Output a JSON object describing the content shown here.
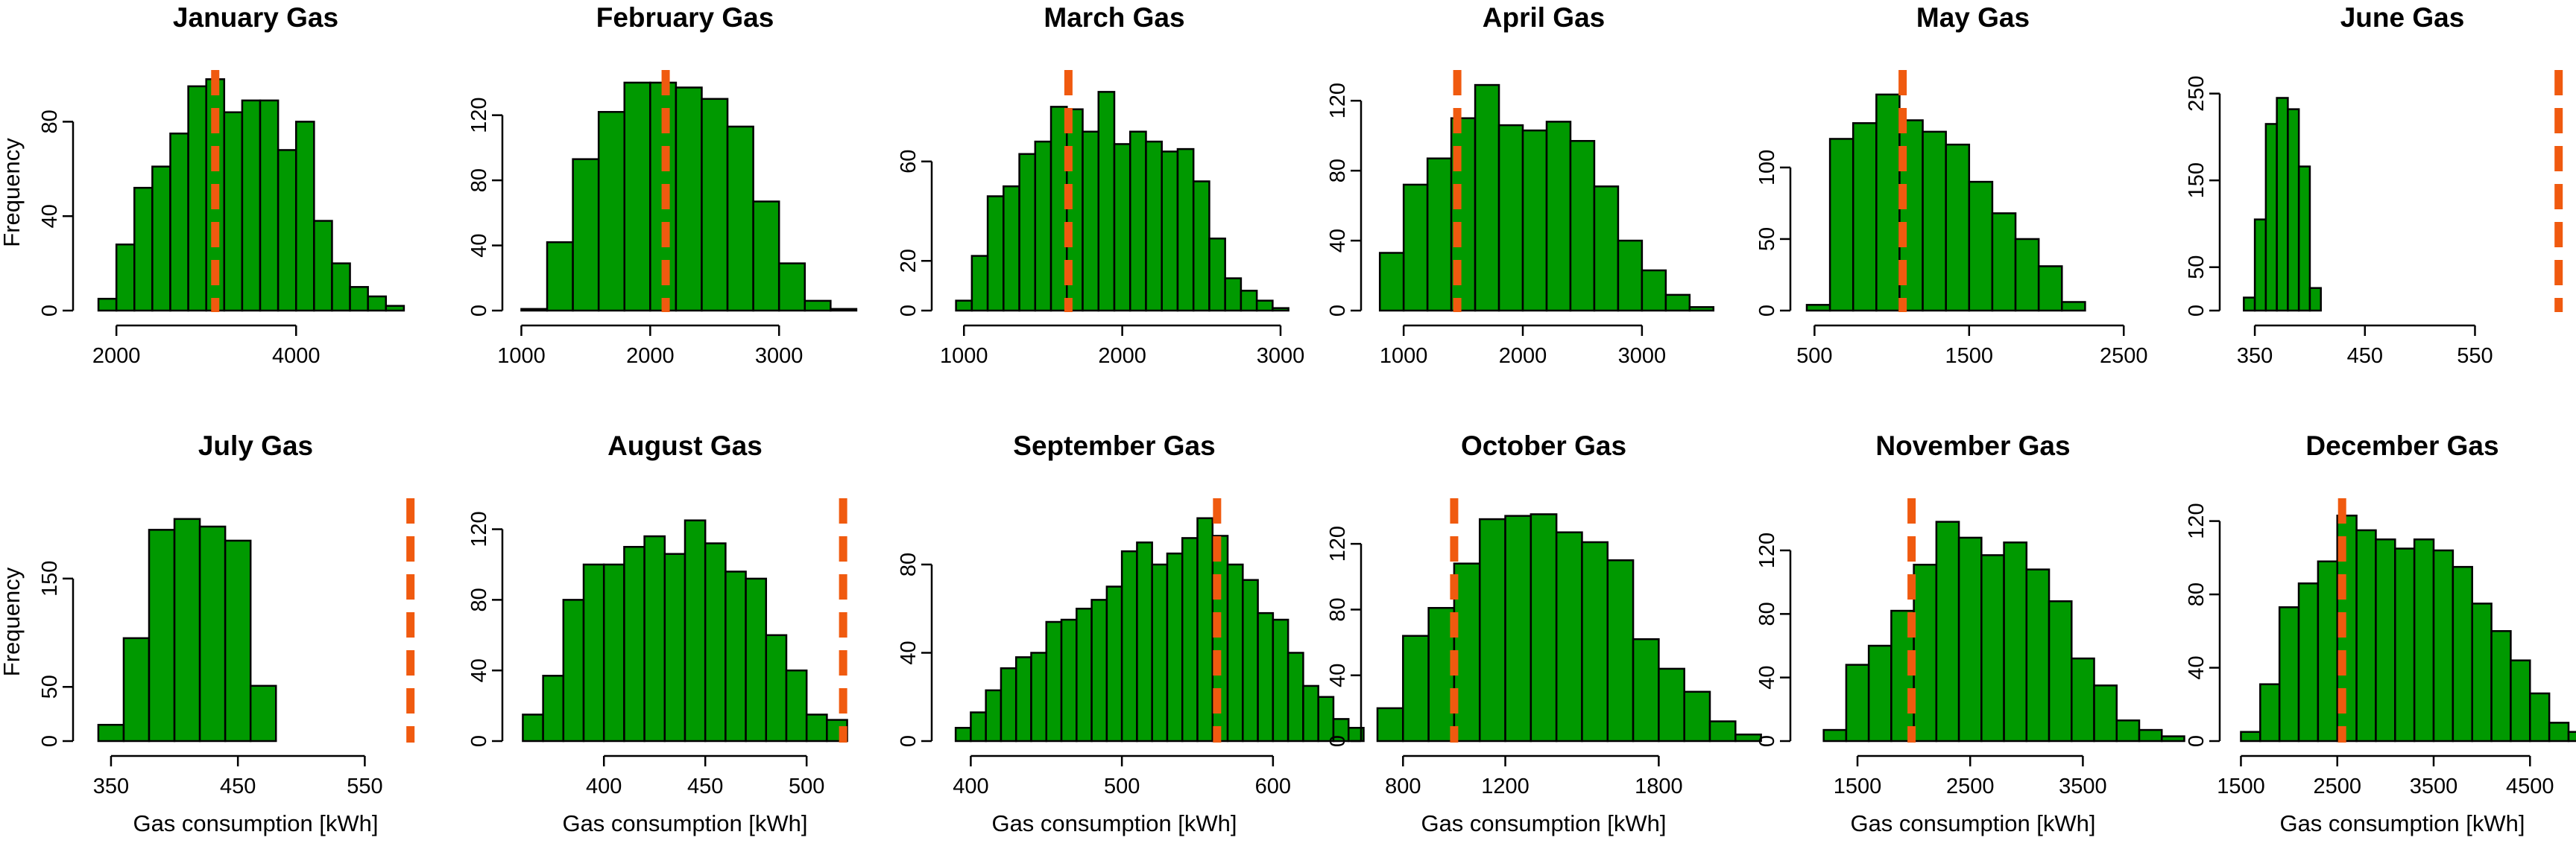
{
  "colors": {
    "bar": "#009900",
    "refline": "#F05A0F"
  },
  "chart_data": [
    {
      "type": "bar",
      "title": "January Gas",
      "xlabel": "",
      "ylabel": "Frequency",
      "xticks": [
        2000,
        4000
      ],
      "yticks": [
        0,
        40,
        80
      ],
      "xlim": [
        1700,
        5400
      ],
      "ylim": [
        0,
        100
      ],
      "bin_start": 1800,
      "bin_width": 200,
      "values": [
        5,
        28,
        52,
        61,
        75,
        95,
        98,
        84,
        89,
        89,
        68,
        80,
        38,
        20,
        10,
        6,
        2
      ],
      "refline": 3100
    },
    {
      "type": "bar",
      "title": "February Gas",
      "xlabel": "",
      "ylabel": "",
      "xticks": [
        1000,
        2000,
        3000
      ],
      "yticks": [
        0,
        40,
        80,
        120
      ],
      "xlim": [
        980,
        3560
      ],
      "ylim": [
        0,
        145
      ],
      "bin_start": 1000,
      "bin_width": 200,
      "values": [
        1,
        42,
        93,
        122,
        140,
        140,
        137,
        130,
        113,
        67,
        29,
        6,
        1
      ],
      "refline": 2120
    },
    {
      "type": "bar",
      "title": "March Gas",
      "xlabel": "",
      "ylabel": "",
      "xticks": [
        1000,
        2000,
        3000
      ],
      "yticks": [
        0,
        20,
        60
      ],
      "xlim": [
        900,
        3000
      ],
      "ylim": [
        0,
        95
      ],
      "bin_start": 950,
      "bin_width": 100,
      "values": [
        4,
        22,
        46,
        50,
        63,
        68,
        82,
        81,
        72,
        88,
        67,
        72,
        68,
        64,
        65,
        52,
        29,
        13,
        8,
        4,
        1
      ],
      "refline": 1660
    },
    {
      "type": "bar",
      "title": "April Gas",
      "xlabel": "",
      "ylabel": "",
      "xticks": [
        1000,
        2000,
        3000
      ],
      "yticks": [
        0,
        40,
        80,
        120
      ],
      "xlim": [
        780,
        3570
      ],
      "ylim": [
        0,
        135
      ],
      "bin_start": 800,
      "bin_width": 200,
      "values": [
        33,
        72,
        87,
        110,
        129,
        106,
        103,
        108,
        97,
        71,
        40,
        23,
        9,
        2
      ],
      "refline": 1450
    },
    {
      "type": "bar",
      "title": "May Gas",
      "xlabel": "",
      "ylabel": "",
      "xticks": [
        500,
        1500,
        2500
      ],
      "yticks": [
        0,
        50,
        100
      ],
      "xlim": [
        450,
        2600
      ],
      "ylim": [
        0,
        165
      ],
      "bin_start": 450,
      "bin_width": 150,
      "values": [
        4,
        120,
        131,
        151,
        133,
        125,
        116,
        90,
        68,
        50,
        31,
        6
      ],
      "refline": 1070
    },
    {
      "type": "bar",
      "title": "June Gas",
      "xlabel": "",
      "ylabel": "",
      "xticks": [
        350,
        450,
        550
      ],
      "yticks": [
        0,
        50,
        150,
        250
      ],
      "xlim": [
        333,
        635
      ],
      "ylim": [
        0,
        272
      ],
      "bin_start": 340,
      "bin_width": 10,
      "values": [
        15,
        105,
        215,
        245,
        232,
        166,
        26
      ],
      "refline": 626
    }
  ],
  "chart_data_row2": [
    {
      "type": "bar",
      "title": "July Gas",
      "xlabel": "Gas consumption [kWh]",
      "ylabel": "Frequency",
      "xticks": [
        350,
        450,
        550
      ],
      "yticks": [
        0,
        50,
        150
      ],
      "xlim": [
        333,
        595
      ],
      "ylim": [
        0,
        220
      ],
      "bin_start": 340,
      "bin_width": 20,
      "values": [
        15,
        95,
        195,
        205,
        198,
        185,
        51
      ],
      "refline": 586
    },
    {
      "type": "bar",
      "title": "August Gas",
      "xlabel": "Gas consumption [kWh]",
      "ylabel": "",
      "xticks": [
        400,
        450,
        500
      ],
      "yticks": [
        0,
        40,
        80,
        120
      ],
      "xlim": [
        358,
        522
      ],
      "ylim": [
        0,
        135
      ],
      "bin_start": 360,
      "bin_width": 10,
      "values": [
        15,
        37,
        80,
        100,
        100,
        110,
        116,
        106,
        125,
        112,
        96,
        92,
        60,
        40,
        15,
        12
      ],
      "refline": 518
    },
    {
      "type": "bar",
      "title": "September Gas",
      "xlabel": "Gas consumption [kWh]",
      "ylabel": "",
      "xticks": [
        400,
        500,
        600
      ],
      "yticks": [
        0,
        40,
        80
      ],
      "xlim": [
        385,
        605
      ],
      "ylim": [
        0,
        108
      ],
      "bin_start": 390,
      "bin_width": 10,
      "values": [
        6,
        13,
        23,
        33,
        38,
        40,
        54,
        55,
        60,
        64,
        70,
        86,
        90,
        80,
        85,
        92,
        101,
        93,
        80,
        73,
        58,
        55,
        40,
        25,
        20,
        10,
        6
      ],
      "refline": 563
    },
    {
      "type": "bar",
      "title": "October Gas",
      "xlabel": "Gas consumption [kWh]",
      "ylabel": "",
      "xticks": [
        800,
        1200,
        1800
      ],
      "yticks": [
        0,
        40,
        80,
        120
      ],
      "xlim": [
        700,
        2000
      ],
      "ylim": [
        0,
        145
      ],
      "bin_start": 700,
      "bin_width": 100,
      "values": [
        20,
        64,
        81,
        108,
        135,
        137,
        138,
        127,
        121,
        110,
        62,
        44,
        30,
        12,
        4
      ],
      "refline": 1000
    },
    {
      "type": "bar",
      "title": "November Gas",
      "xlabel": "Gas consumption [kWh]",
      "ylabel": "",
      "xticks": [
        1500,
        2500,
        3500
      ],
      "yticks": [
        0,
        40,
        80,
        120
      ],
      "xlim": [
        1050,
        4000
      ],
      "ylim": [
        0,
        150
      ],
      "bin_start": 1200,
      "bin_width": 200,
      "values": [
        7,
        48,
        60,
        82,
        111,
        138,
        128,
        117,
        125,
        108,
        88,
        52,
        35,
        13,
        7,
        3
      ],
      "refline": 1980
    },
    {
      "type": "bar",
      "title": "December Gas",
      "xlabel": "Gas consumption [kWh]",
      "ylabel": "",
      "xticks": [
        1500,
        2500,
        3500,
        4500
      ],
      "yticks": [
        0,
        40,
        80,
        120
      ],
      "xlim": [
        1450,
        4900
      ],
      "ylim": [
        0,
        130
      ],
      "bin_start": 1500,
      "bin_width": 200,
      "values": [
        5,
        31,
        73,
        86,
        98,
        123,
        115,
        110,
        105,
        110,
        104,
        95,
        75,
        60,
        44,
        26,
        10,
        5
      ],
      "refline": 2550
    }
  ]
}
